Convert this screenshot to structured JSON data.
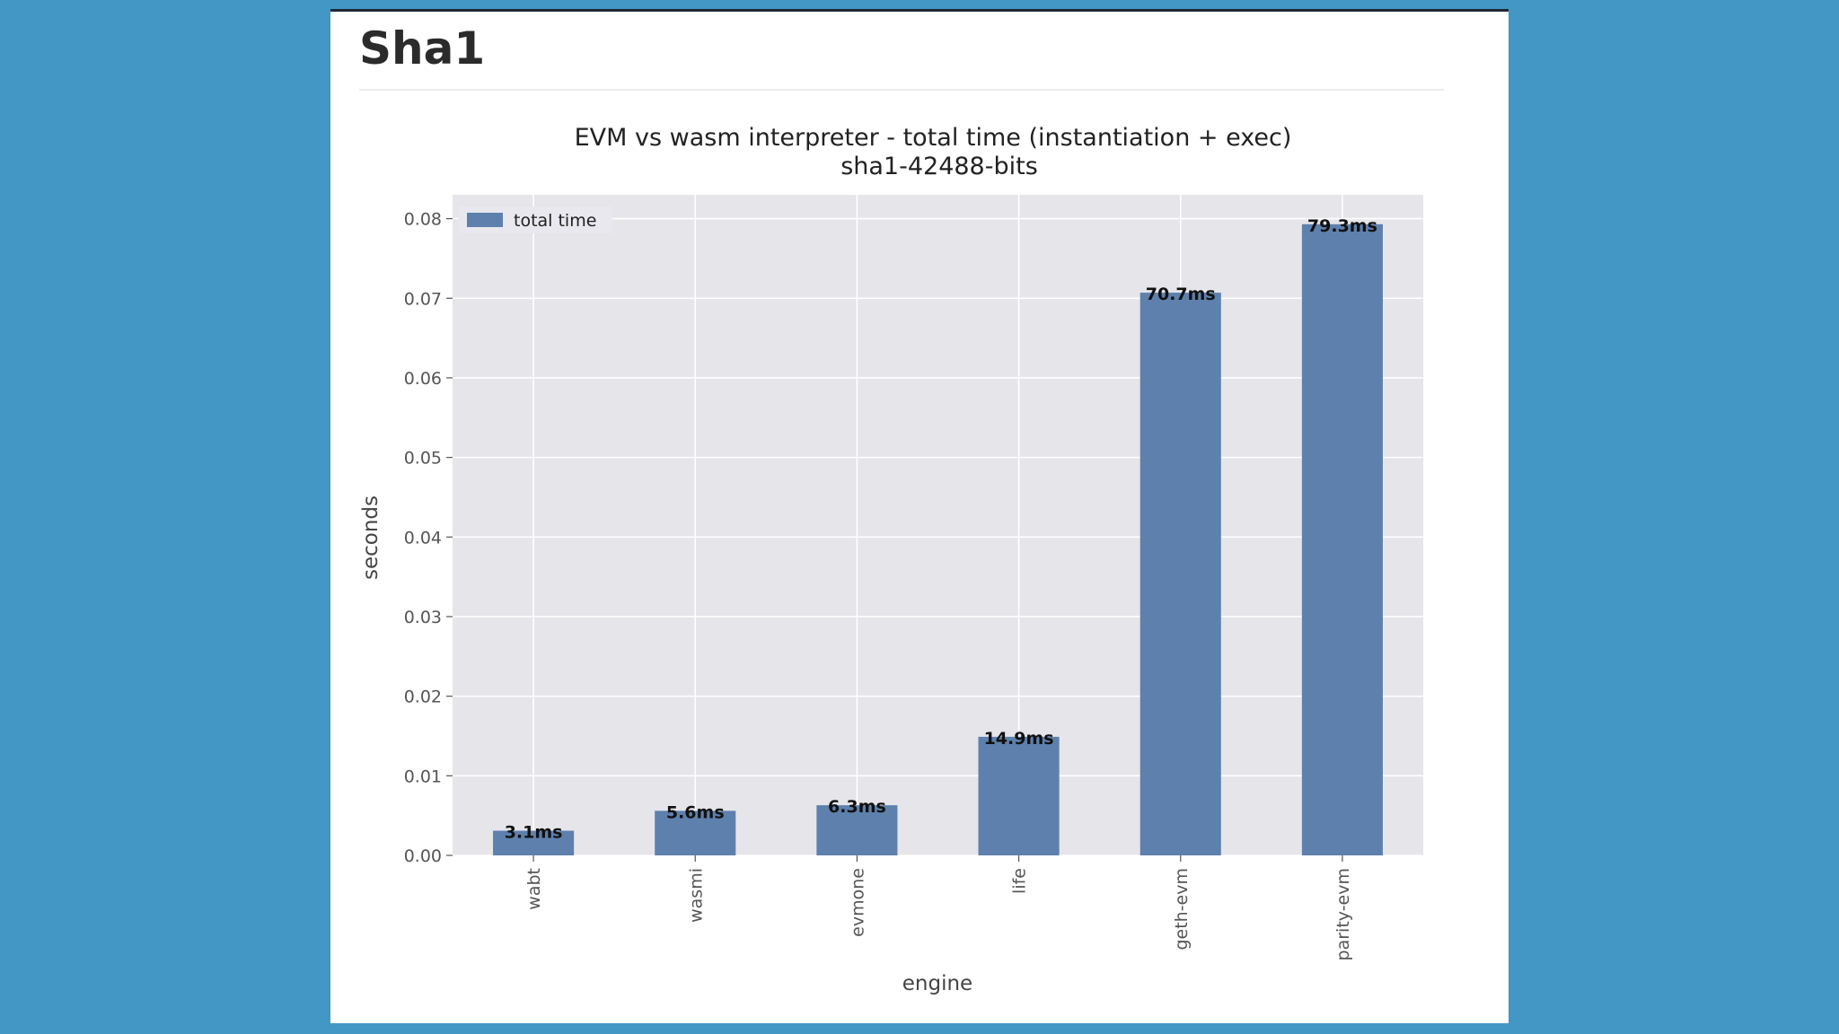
{
  "slide": {
    "title": "Sha1",
    "background": "#4397c4"
  },
  "chart_data": {
    "type": "bar",
    "title": "EVM vs wasm interpreter - total time (instantiation + exec)",
    "subtitle": "sha1-42488-bits",
    "xlabel": "engine",
    "ylabel": "seconds",
    "categories": [
      "wabt",
      "wasmi",
      "evmone",
      "life",
      "geth-evm",
      "parity-evm"
    ],
    "series": [
      {
        "name": "total time",
        "values": [
          0.0031,
          0.0056,
          0.0063,
          0.0149,
          0.0707,
          0.0793
        ],
        "labels": [
          "3.1ms",
          "5.6ms",
          "6.3ms",
          "14.9ms",
          "70.7ms",
          "79.3ms"
        ],
        "color": "#5e80ac"
      }
    ],
    "ylim": [
      0,
      0.083
    ],
    "yticks": [
      0.0,
      0.01,
      0.02,
      0.03,
      0.04,
      0.05,
      0.06,
      0.07,
      0.08
    ],
    "ytick_labels": [
      "0.00",
      "0.01",
      "0.02",
      "0.03",
      "0.04",
      "0.05",
      "0.06",
      "0.07",
      "0.08"
    ],
    "grid": true,
    "legend_position": "top-left",
    "plot_background": "#e5e5ea"
  }
}
